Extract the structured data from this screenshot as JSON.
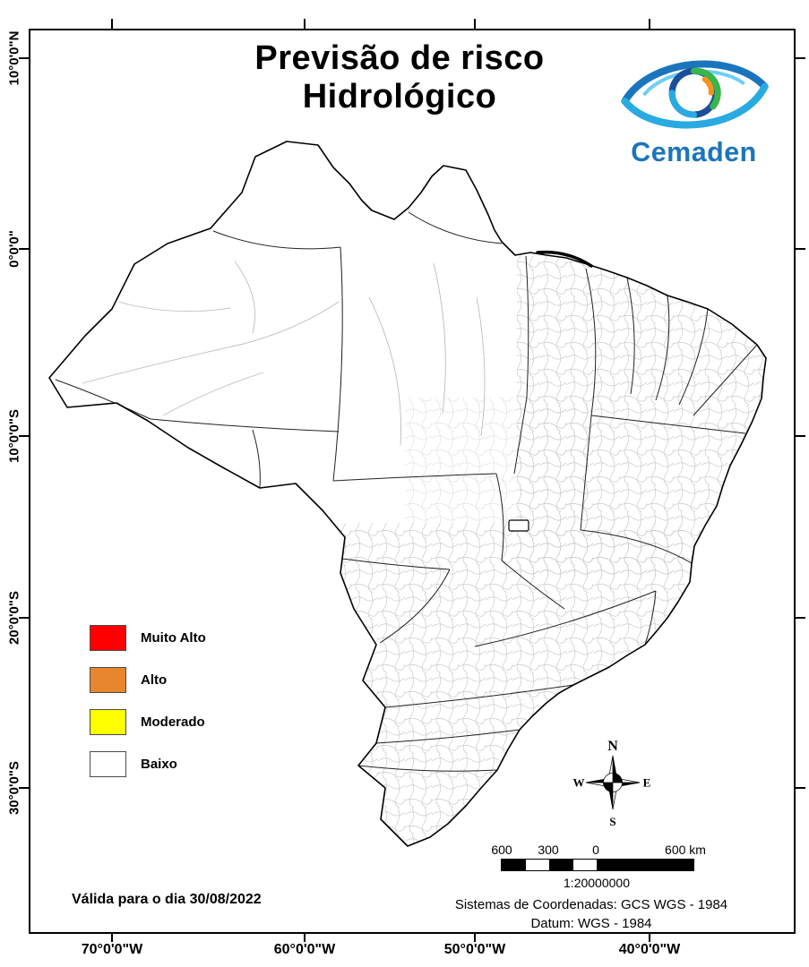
{
  "title": {
    "line1": "Previsão de risco",
    "line2": "Hidrológico"
  },
  "logo": {
    "text": "Cemaden",
    "color": "#1b75bc"
  },
  "axis": {
    "lat": [
      "10°0'0\"N",
      "0°0'0\"",
      "10°0'0\"S",
      "20°0'0\"S",
      "30°0'0\"S"
    ],
    "lon": [
      "70°0'0\"W",
      "60°0'0\"W",
      "50°0'0\"W",
      "40°0'0\"W"
    ]
  },
  "legend": {
    "items": [
      {
        "label": "Muito Alto",
        "color": "#fe0000"
      },
      {
        "label": "Alto",
        "color": "#e8862d"
      },
      {
        "label": "Moderado",
        "color": "#ffff00"
      },
      {
        "label": "Baixo",
        "color": "#ffffff"
      }
    ]
  },
  "compass": {
    "n": "N",
    "s": "S",
    "e": "E",
    "w": "W"
  },
  "scalebar": {
    "labels": [
      "600",
      "300",
      "0",
      "600 km"
    ],
    "ratio": "1:20000000"
  },
  "validity": "Válida para o dia 30/08/2022",
  "crs": {
    "line1": "Sistemas de Coordenadas: GCS WGS - 1984",
    "line2": "Datum: WGS - 1984"
  }
}
